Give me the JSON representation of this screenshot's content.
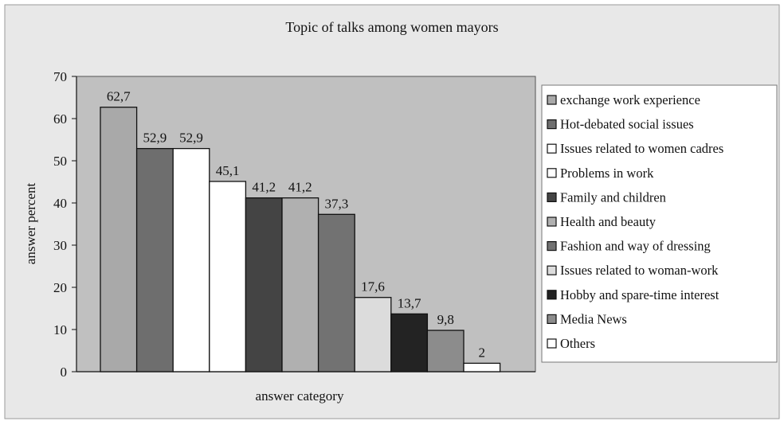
{
  "chart_data": {
    "type": "bar",
    "title": "Topic of talks among women mayors",
    "xlabel": "answer category",
    "ylabel": "answer percent",
    "ylim": [
      0,
      70
    ],
    "yticks": [
      "0",
      "10",
      "20",
      "30",
      "40",
      "50",
      "60",
      "70"
    ],
    "ytick_values": [
      0,
      10,
      20,
      30,
      40,
      50,
      60,
      70
    ],
    "grid": false,
    "legend_position": "right",
    "series": [
      {
        "name": "exchange work experience",
        "value": 62.7,
        "label": "62,7",
        "color": "#a9a9a9"
      },
      {
        "name": "Hot-debated social issues",
        "value": 52.9,
        "label": "52,9",
        "color": "#6e6e6e"
      },
      {
        "name": "Issues related to women cadres",
        "value": 52.9,
        "label": "52,9",
        "color": "#ffffff"
      },
      {
        "name": "Problems in work",
        "value": 45.1,
        "label": "45,1",
        "color": "#ffffff"
      },
      {
        "name": "Family and children",
        "value": 41.2,
        "label": "41,2",
        "color": "#444444"
      },
      {
        "name": "Health and beauty",
        "value": 41.2,
        "label": "41,2",
        "color": "#b0b0b0"
      },
      {
        "name": "Fashion and way of dressing",
        "value": 37.3,
        "label": "37,3",
        "color": "#727272"
      },
      {
        "name": "Issues related to woman-work",
        "value": 17.6,
        "label": "17,6",
        "color": "#dcdcdc"
      },
      {
        "name": "Hobby and spare-time interest",
        "value": 13.7,
        "label": "13,7",
        "color": "#232323"
      },
      {
        "name": "Media News",
        "value": 9.8,
        "label": "9,8",
        "color": "#8c8c8c"
      },
      {
        "name": "Others",
        "value": 2,
        "label": "2",
        "color": "#ffffff"
      }
    ],
    "colors": {
      "figure_background": "#e8e8e8",
      "plot_background": "#c0c0c0",
      "legend_background": "#ffffff",
      "bar_border": "#111111"
    }
  }
}
